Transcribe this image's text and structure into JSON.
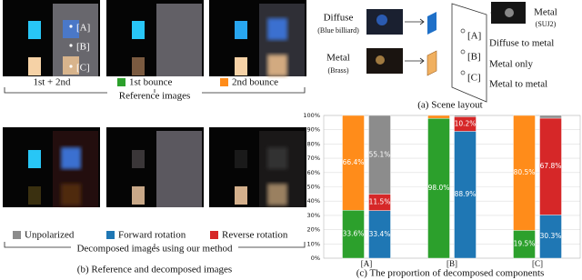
{
  "images": {
    "markers": [
      "[A]",
      "[B]",
      "[C]"
    ]
  },
  "reference_row": {
    "combined_label": "1st + 2nd",
    "group_label": "Reference images"
  },
  "decomposed_row": {
    "group_label": "Decomposed images using our method"
  },
  "caption_b": "(b) Reference and decomposed images",
  "scene_layout": {
    "inputs": [
      {
        "name": "Diffuse",
        "detail": "(Blue billiard)"
      },
      {
        "name": "Metal",
        "detail": "(Brass)"
      },
      {
        "name": "Metal",
        "detail": "(SUJ2)"
      }
    ],
    "points": [
      {
        "label": "[A]",
        "description": "Diffuse to metal"
      },
      {
        "label": "[B]",
        "description": "Metal only"
      },
      {
        "label": "[C]",
        "description": "Metal to metal"
      }
    ],
    "caption": "(a) Scene layout"
  },
  "chart_data": {
    "type": "stacked_bar",
    "caption": "(c) The proportion of decomposed components",
    "categories": [
      "[A]",
      "[B]",
      "[C]"
    ],
    "series": [
      {
        "name": "1st bounce",
        "color": "#2ca02c",
        "stack": 0,
        "values": [
          33.6,
          98.0,
          19.5
        ],
        "value_labels": [
          "33.6%",
          "98.0%",
          "19.5%"
        ]
      },
      {
        "name": "2nd bounce",
        "color": "#ff8c1a",
        "stack": 0,
        "values": [
          66.4,
          2.0,
          80.5
        ],
        "value_labels": [
          "66.4%",
          null,
          "80.5%"
        ]
      },
      {
        "name": "Forward rotation",
        "color": "#1f77b4",
        "stack": 1,
        "values": [
          33.4,
          88.9,
          30.3
        ],
        "value_labels": [
          "33.4%",
          "88.9%",
          "30.3%"
        ]
      },
      {
        "name": "Reverse rotation",
        "color": "#d62728",
        "stack": 1,
        "values": [
          11.5,
          10.2,
          67.8
        ],
        "value_labels": [
          "11.5%",
          "10.2%",
          "67.8%"
        ]
      },
      {
        "name": "Unpolarized",
        "color": "#8c8c8c",
        "stack": 1,
        "values": [
          55.1,
          0.9,
          1.9
        ],
        "value_labels": [
          "55.1%",
          null,
          null
        ]
      }
    ],
    "ylim": [
      0,
      100
    ],
    "yticks": [
      {
        "value": 0,
        "label": "0%"
      },
      {
        "value": 10,
        "label": "10%"
      },
      {
        "value": 20,
        "label": "20%"
      },
      {
        "value": 30,
        "label": "30%"
      },
      {
        "value": 40,
        "label": "40%"
      },
      {
        "value": 50,
        "label": "50%"
      },
      {
        "value": 60,
        "label": "60%"
      },
      {
        "value": 70,
        "label": "70%"
      },
      {
        "value": 80,
        "label": "80%"
      },
      {
        "value": 90,
        "label": "90%"
      },
      {
        "value": 100,
        "label": "100%"
      }
    ],
    "grid": true
  }
}
